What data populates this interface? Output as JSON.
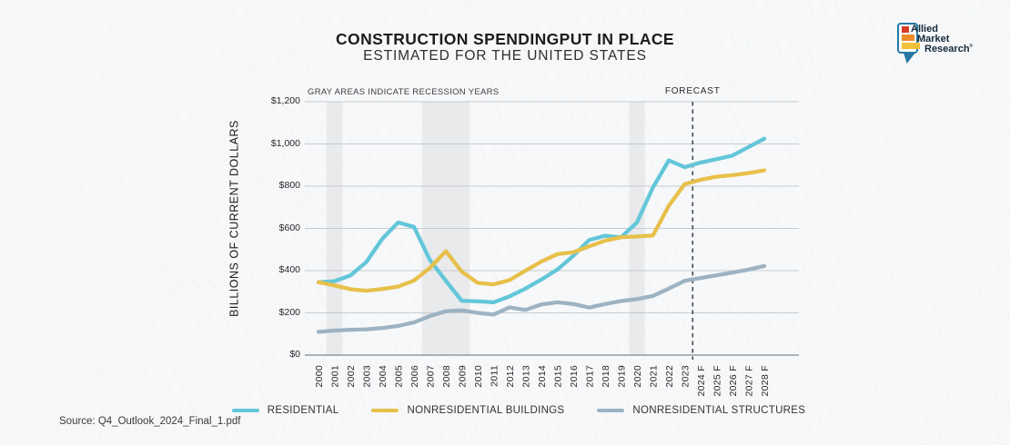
{
  "page": {
    "title": "CONSTRUCTION SPENDINGPUT IN PLACE",
    "subtitle": "ESTIMATED FOR THE UNITED STATES",
    "source": "Source: Q4_Outlook_2024_Final_1.pdf"
  },
  "logo": {
    "lines": [
      "Allied",
      "Market",
      "Research"
    ],
    "reg_mark": "®",
    "colors": {
      "bubble_border": "#2879a5",
      "bar_red": "#d63b25",
      "bar_orange": "#ec8c2a",
      "bar_yellow": "#efc13b",
      "text": "#15293b"
    }
  },
  "chart_data": {
    "type": "line",
    "title": "CONSTRUCTION SPENDINGPUT IN PLACE",
    "subtitle": "ESTIMATED FOR THE UNITED STATES",
    "ylabel": "BILLIONS OF CURRENT DOLLARS",
    "xlabel": "",
    "ylim": [
      0,
      1200
    ],
    "ytick_step": 200,
    "ytick_labels": [
      "$1,200",
      "$1,000",
      "$800",
      "$600",
      "$400",
      "$200",
      "$0"
    ],
    "grid": true,
    "legend_position": "bottom",
    "annotation": "GRAY AREAS INDICATE RECESSION YEARS",
    "forecast_label": "FORECAST",
    "forecast_start_category": "2024 F",
    "recession_years": [
      "2001",
      "2007",
      "2008",
      "2009",
      "2020"
    ],
    "categories": [
      "2000",
      "2001",
      "2002",
      "2003",
      "2004",
      "2005",
      "2006",
      "2007",
      "2008",
      "2009",
      "2010",
      "2011",
      "2012",
      "2013",
      "2014",
      "2015",
      "2016",
      "2017",
      "2018",
      "2019",
      "2020",
      "2021",
      "2022",
      "2023",
      "2024 F",
      "2025 F",
      "2026 F",
      "2027 F",
      "2028 F"
    ],
    "series": [
      {
        "name": "RESIDENTIAL",
        "color": "#63c6d9",
        "values": [
          345,
          350,
          377,
          440,
          550,
          628,
          607,
          450,
          352,
          257,
          255,
          250,
          278,
          315,
          358,
          405,
          470,
          545,
          565,
          558,
          628,
          793,
          922,
          890,
          912,
          928,
          945,
          985,
          1025
        ]
      },
      {
        "name": "NONRESIDENTIAL BUILDINGS",
        "color": "#e7c04b",
        "values": [
          345,
          330,
          312,
          305,
          313,
          324,
          353,
          413,
          492,
          395,
          342,
          335,
          355,
          400,
          443,
          478,
          487,
          515,
          542,
          558,
          562,
          566,
          707,
          810,
          830,
          845,
          852,
          862,
          875
        ]
      },
      {
        "name": "NONRESIDENTIAL STRUCTURES",
        "color": "#9db3c2",
        "values": [
          110,
          116,
          120,
          122,
          128,
          138,
          155,
          185,
          208,
          212,
          200,
          192,
          226,
          214,
          240,
          250,
          242,
          225,
          242,
          256,
          265,
          280,
          315,
          352,
          365,
          378,
          391,
          405,
          422
        ]
      }
    ],
    "colors": {
      "recession_band": "#e8eaec",
      "gridline": "#c7cbcf",
      "axis_line": "#959aa0",
      "forecast_line": "#4d5156",
      "tick_text": "#26282b"
    }
  }
}
